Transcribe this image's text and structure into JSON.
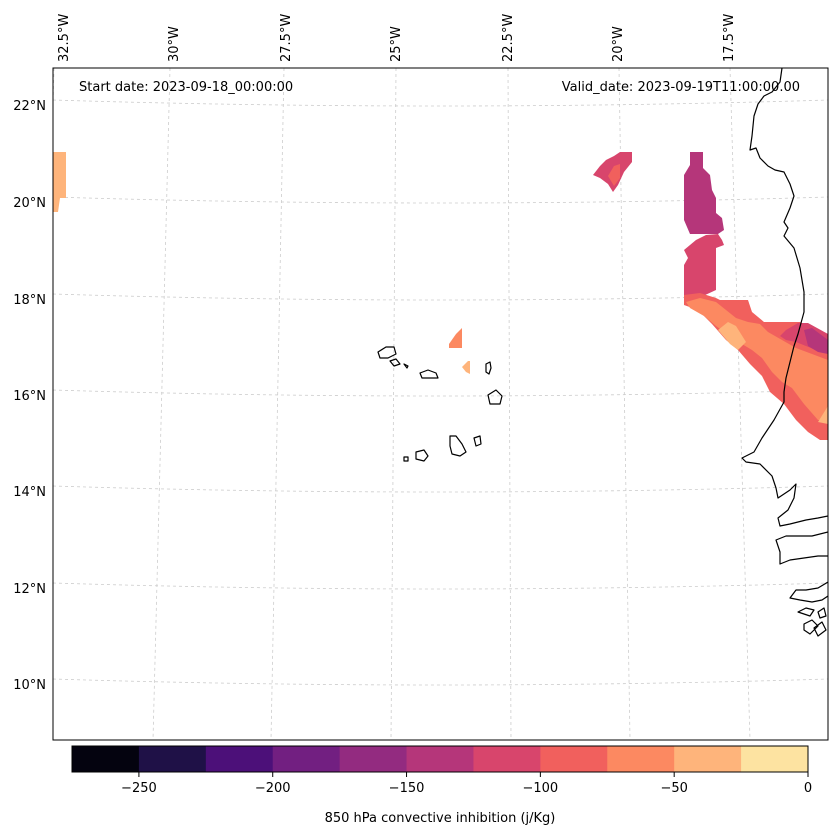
{
  "map": {
    "start_date_text": "Start date: 2023-09-18_00:00:00",
    "valid_date_text": "Valid_date: 2023-09-19T11:00:00.00",
    "lon_labels": [
      "32.5°W",
      "30°W",
      "27.5°W",
      "25°W",
      "22.5°W",
      "20°W",
      "17.5°W"
    ],
    "lat_labels": [
      "22°N",
      "20°N",
      "18°N",
      "16°N",
      "14°N",
      "12°N",
      "10°N"
    ],
    "gridlines": true
  },
  "colorbar": {
    "label": "850 hPa convective inhibition (j/Kg)",
    "tick_labels": [
      "−250",
      "−200",
      "−150",
      "−100",
      "−50",
      "0"
    ],
    "range": [
      -275,
      0
    ],
    "levels": [
      -275,
      -250,
      -225,
      -200,
      -175,
      -150,
      -125,
      -100,
      -75,
      -50,
      -25,
      0
    ],
    "colors": [
      "#04030f",
      "#1f1147",
      "#4c1079",
      "#721f81",
      "#932b80",
      "#b5367a",
      "#d8456c",
      "#f1605d",
      "#fc8961",
      "#feb47b",
      "#fde3a1"
    ]
  }
}
